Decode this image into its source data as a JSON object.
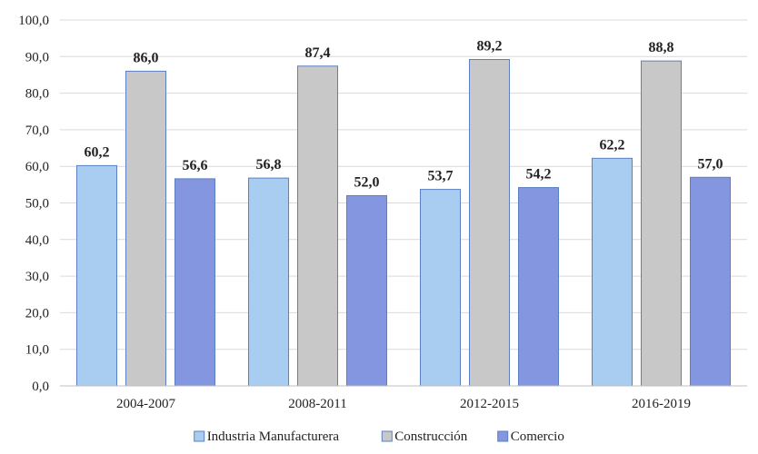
{
  "chart_data": {
    "type": "bar",
    "categories": [
      "2004-2007",
      "2008-2011",
      "2012-2015",
      "2016-2019"
    ],
    "series": [
      {
        "name": "Industria Manufacturera",
        "values": [
          60.2,
          56.8,
          53.7,
          62.2
        ],
        "labels": [
          "60,2",
          "56,8",
          "53,7",
          "62,2"
        ],
        "color": "#a9cdf0"
      },
      {
        "name": "Construcción",
        "values": [
          86.0,
          87.4,
          89.2,
          88.8
        ],
        "labels": [
          "86,0",
          "87,4",
          "89,2",
          "88,8"
        ],
        "color": "#c8c8c8"
      },
      {
        "name": "Comercio",
        "values": [
          56.6,
          52.0,
          54.2,
          57.0
        ],
        "labels": [
          "56,6",
          "52,0",
          "54,2",
          "57,0"
        ],
        "color": "#8496e0"
      }
    ],
    "ylim": [
      0,
      100
    ],
    "yticks": [
      "0,0",
      "10,0",
      "20,0",
      "30,0",
      "40,0",
      "50,0",
      "60,0",
      "70,0",
      "80,0",
      "90,0",
      "100,0"
    ],
    "title": "",
    "xlabel": "",
    "ylabel": "",
    "grid": true,
    "legend_position": "bottom"
  }
}
